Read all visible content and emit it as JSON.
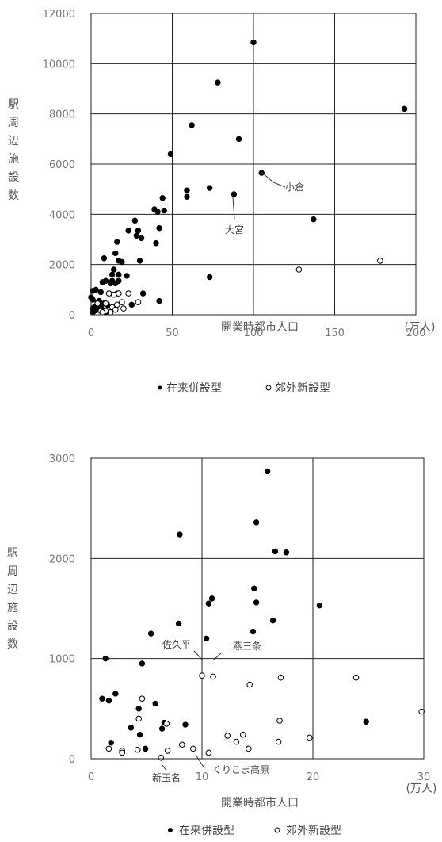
{
  "chart_data": [
    {
      "type": "scatter",
      "xlabel": "開業時都市人口",
      "xunit": "(万人)",
      "ylabel": "駅周辺施設数",
      "xlim": [
        0,
        200
      ],
      "ylim": [
        0,
        12000
      ],
      "xticks": [
        "0",
        "50",
        "100",
        "150",
        "200"
      ],
      "yticks": [
        "0",
        "2000",
        "4000",
        "6000",
        "8000",
        "10000",
        "12000"
      ],
      "grid": true,
      "legend_position": "bottom",
      "series": [
        {
          "name": "在来併設型",
          "marker": "filled",
          "color": "#000000",
          "points": [
            [
              100,
              10850
            ],
            [
              78,
              9250
            ],
            [
              193,
              8200
            ],
            [
              62,
              7550
            ],
            [
              91,
              7000
            ],
            [
              49,
              6400
            ],
            [
              105,
              5650
            ],
            [
              59,
              4950
            ],
            [
              73,
              5050
            ],
            [
              59,
              4700
            ],
            [
              88,
              4800
            ],
            [
              44,
              4650
            ],
            [
              39,
              4200
            ],
            [
              45,
              4150
            ],
            [
              41,
              4100
            ],
            [
              137,
              3800
            ],
            [
              27,
              3750
            ],
            [
              42,
              3450
            ],
            [
              23,
              3350
            ],
            [
              29,
              3350
            ],
            [
              28,
              3150
            ],
            [
              31,
              3050
            ],
            [
              40,
              2850
            ],
            [
              16,
              2900
            ],
            [
              15,
              2450
            ],
            [
              8,
              2250
            ],
            [
              17,
              2150
            ],
            [
              19,
              2100
            ],
            [
              30,
              2150
            ],
            [
              73,
              1500
            ],
            [
              14,
              1800
            ],
            [
              13,
              1600
            ],
            [
              17,
              1600
            ],
            [
              22,
              1550
            ],
            [
              13,
              1350
            ],
            [
              9,
              1350
            ],
            [
              7,
              1300
            ],
            [
              12,
              1250
            ],
            [
              17,
              1350
            ],
            [
              15,
              1250
            ],
            [
              3,
              1000
            ],
            [
              1,
              950
            ],
            [
              6,
              900
            ],
            [
              11,
              850
            ],
            [
              16,
              850
            ],
            [
              32,
              850
            ],
            [
              0,
              700
            ],
            [
              1,
              600
            ],
            [
              5,
              550
            ],
            [
              42,
              550
            ],
            [
              4,
              500
            ],
            [
              8,
              450
            ],
            [
              10,
              400
            ],
            [
              3,
              350
            ],
            [
              25,
              400
            ],
            [
              6,
              350
            ],
            [
              2,
              300
            ],
            [
              1,
              250
            ],
            [
              4,
              200
            ],
            [
              7,
              200
            ],
            [
              2,
              150
            ],
            [
              9,
              100
            ],
            [
              1,
              100
            ]
          ]
        },
        {
          "name": "郊外新設型",
          "marker": "open",
          "color": "#000000",
          "points": [
            [
              178,
              2150
            ],
            [
              128,
              1800
            ],
            [
              11,
              850
            ],
            [
              14,
              800
            ],
            [
              17,
              850
            ],
            [
              23,
              850
            ],
            [
              19,
              500
            ],
            [
              29,
              500
            ],
            [
              9,
              450
            ],
            [
              16,
              400
            ],
            [
              4,
              450
            ],
            [
              13,
              300
            ],
            [
              20,
              250
            ],
            [
              15,
              200
            ],
            [
              6,
              150
            ],
            [
              9,
              150
            ],
            [
              12,
              100
            ],
            [
              7,
              100
            ]
          ]
        }
      ],
      "annotations": [
        {
          "text": "小倉",
          "x": 105,
          "y": 5650
        },
        {
          "text": "大宮",
          "x": 88,
          "y": 4800
        }
      ]
    },
    {
      "type": "scatter",
      "xlabel": "開業時都市人口",
      "xunit": "(万人)",
      "ylabel": "駅周辺施設数",
      "xlim": [
        0,
        30
      ],
      "ylim": [
        0,
        3000
      ],
      "xticks": [
        "0",
        "10",
        "20",
        "30"
      ],
      "yticks": [
        "0",
        "1000",
        "2000",
        "3000"
      ],
      "grid": true,
      "legend_position": "bottom",
      "series": [
        {
          "name": "在来併設型",
          "marker": "filled",
          "color": "#000000",
          "points": [
            [
              15.9,
              2870
            ],
            [
              14.9,
              2360
            ],
            [
              8.0,
              2240
            ],
            [
              16.6,
              2070
            ],
            [
              17.6,
              2060
            ],
            [
              7.9,
              1350
            ],
            [
              10.9,
              1600
            ],
            [
              10.6,
              1550
            ],
            [
              14.7,
              1700
            ],
            [
              14.9,
              1560
            ],
            [
              20.6,
              1530
            ],
            [
              5.4,
              1250
            ],
            [
              16.4,
              1380
            ],
            [
              10.4,
              1200
            ],
            [
              14.6,
              1270
            ],
            [
              1.3,
              1000
            ],
            [
              4.6,
              950
            ],
            [
              1.0,
              600
            ],
            [
              1.6,
              580
            ],
            [
              2.2,
              650
            ],
            [
              5.8,
              550
            ],
            [
              4.3,
              500
            ],
            [
              3.6,
              310
            ],
            [
              6.6,
              360
            ],
            [
              6.4,
              300
            ],
            [
              8.5,
              340
            ],
            [
              24.8,
              370
            ],
            [
              1.8,
              160
            ],
            [
              4.4,
              240
            ],
            [
              4.9,
              100
            ]
          ]
        },
        {
          "name": "郊外新設型",
          "marker": "open",
          "color": "#000000",
          "points": [
            [
              10.0,
              830
            ],
            [
              11.0,
              820
            ],
            [
              14.3,
              740
            ],
            [
              17.1,
              810
            ],
            [
              23.9,
              810
            ],
            [
              29.8,
              470
            ],
            [
              17.0,
              380
            ],
            [
              4.6,
              600
            ],
            [
              6.8,
              350
            ],
            [
              12.3,
              230
            ],
            [
              13.1,
              170
            ],
            [
              13.7,
              240
            ],
            [
              16.9,
              170
            ],
            [
              19.7,
              210
            ],
            [
              4.3,
              400
            ],
            [
              1.6,
              100
            ],
            [
              2.8,
              80
            ],
            [
              2.8,
              60
            ],
            [
              4.2,
              90
            ],
            [
              6.9,
              80
            ],
            [
              8.2,
              140
            ],
            [
              9.2,
              100
            ],
            [
              10.6,
              60
            ],
            [
              14.2,
              100
            ],
            [
              6.3,
              10
            ]
          ]
        }
      ],
      "annotations": [
        {
          "text": "佐久平",
          "x": 10.0,
          "y": 830
        },
        {
          "text": "燕三条",
          "x": 11.0,
          "y": 820
        },
        {
          "text": "新玉名",
          "x": 6.3,
          "y": 10
        },
        {
          "text": "くりこま高原",
          "x": 9.2,
          "y": 100
        }
      ]
    }
  ]
}
